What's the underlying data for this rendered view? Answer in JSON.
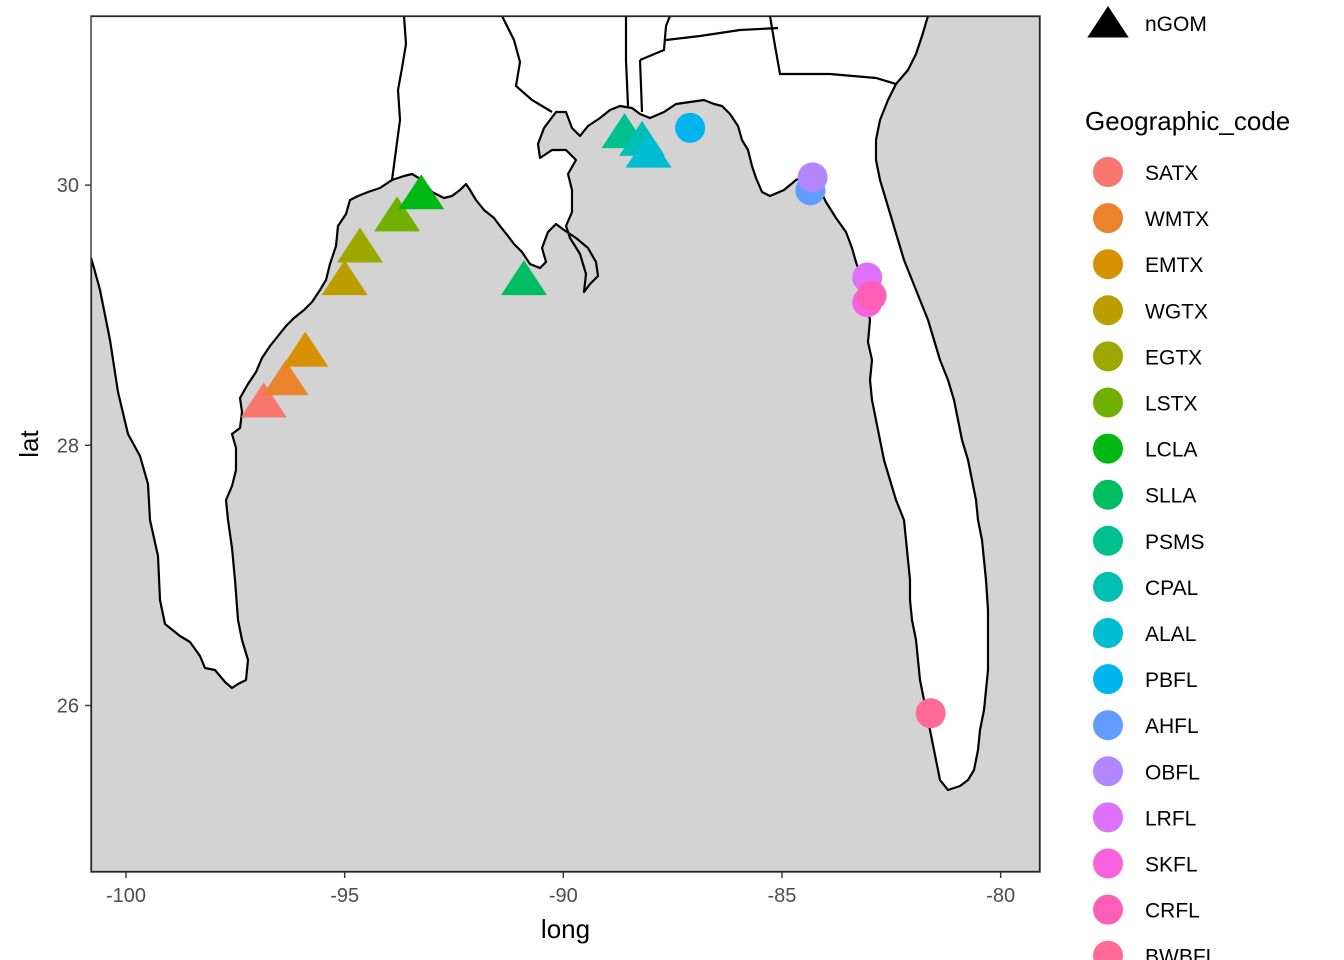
{
  "chart_data": {
    "type": "scatter",
    "subtype": "map",
    "title": "",
    "xlabel": "long",
    "ylabel": "lat",
    "xlim": [
      -100.8,
      -79.1
    ],
    "ylim": [
      24.72,
      31.3
    ],
    "x_ticks": [
      -100,
      -95,
      -90,
      -85,
      -80
    ],
    "x_tick_labels": [
      "-100",
      "-95",
      "-90",
      "-85",
      "-80"
    ],
    "y_ticks": [
      26,
      28,
      30
    ],
    "y_tick_labels": [
      "26",
      "28",
      "30"
    ],
    "grid": false,
    "background": "#ffffff",
    "land_color": "#d3d3d3",
    "border_color": "#000000",
    "shape_legend": {
      "title": "",
      "items": [
        {
          "label": "nGOM",
          "shape": "triangle"
        }
      ]
    },
    "color_legend": {
      "title": "Geographic_code",
      "placement": "right",
      "items": [
        {
          "code": "SATX",
          "color": "#F8766D"
        },
        {
          "code": "WMTX",
          "color": "#E9842C"
        },
        {
          "code": "EMTX",
          "color": "#D69100"
        },
        {
          "code": "WGTX",
          "color": "#BC9D00"
        },
        {
          "code": "EGTX",
          "color": "#9CA700"
        },
        {
          "code": "LSTX",
          "color": "#6FB000"
        },
        {
          "code": "LCLA",
          "color": "#00B813"
        },
        {
          "code": "SLLA",
          "color": "#00BD61"
        },
        {
          "code": "PSMS",
          "color": "#00C08E"
        },
        {
          "code": "CPAL",
          "color": "#00C0B4"
        },
        {
          "code": "ALAL",
          "color": "#00BDD4"
        },
        {
          "code": "PBFL",
          "color": "#00B5EE"
        },
        {
          "code": "AHFL",
          "color": "#619CFF"
        },
        {
          "code": "OBFL",
          "color": "#B186FE"
        },
        {
          "code": "LRFL",
          "color": "#DD71FA"
        },
        {
          "code": "SKFL",
          "color": "#F862DF"
        },
        {
          "code": "CRFL",
          "color": "#FF5FB6"
        },
        {
          "code": "BWBFL",
          "color": "#FF6A97"
        }
      ]
    },
    "points": [
      {
        "code": "SATX",
        "long": -96.85,
        "lat": 28.33,
        "shape": "triangle"
      },
      {
        "code": "WMTX",
        "long": -96.35,
        "lat": 28.5,
        "shape": "triangle"
      },
      {
        "code": "EMTX",
        "long": -95.9,
        "lat": 28.72,
        "shape": "triangle"
      },
      {
        "code": "WGTX",
        "long": -95.0,
        "lat": 29.27,
        "shape": "triangle"
      },
      {
        "code": "EGTX",
        "long": -94.65,
        "lat": 29.52,
        "shape": "triangle"
      },
      {
        "code": "LSTX",
        "long": -93.8,
        "lat": 29.76,
        "shape": "triangle"
      },
      {
        "code": "LCLA",
        "long": -93.25,
        "lat": 29.93,
        "shape": "triangle"
      },
      {
        "code": "SLLA",
        "long": -90.9,
        "lat": 29.27,
        "shape": "triangle"
      },
      {
        "code": "PSMS",
        "long": -88.6,
        "lat": 30.4,
        "shape": "triangle"
      },
      {
        "code": "CPAL",
        "long": -88.2,
        "lat": 30.34,
        "shape": "triangle"
      },
      {
        "code": "ALAL",
        "long": -88.05,
        "lat": 30.25,
        "shape": "triangle"
      },
      {
        "code": "PBFL",
        "long": -87.1,
        "lat": 30.44,
        "shape": "circle"
      },
      {
        "code": "AHFL",
        "long": -84.35,
        "lat": 29.96,
        "shape": "circle"
      },
      {
        "code": "OBFL",
        "long": -84.3,
        "lat": 30.06,
        "shape": "circle"
      },
      {
        "code": "LRFL",
        "long": -83.05,
        "lat": 29.29,
        "shape": "circle"
      },
      {
        "code": "SKFL",
        "long": -83.05,
        "lat": 29.1,
        "shape": "circle"
      },
      {
        "code": "CRFL",
        "long": -82.95,
        "lat": 29.15,
        "shape": "circle"
      },
      {
        "code": "BWBFL",
        "long": -81.6,
        "lat": 25.94,
        "shape": "circle"
      }
    ]
  }
}
